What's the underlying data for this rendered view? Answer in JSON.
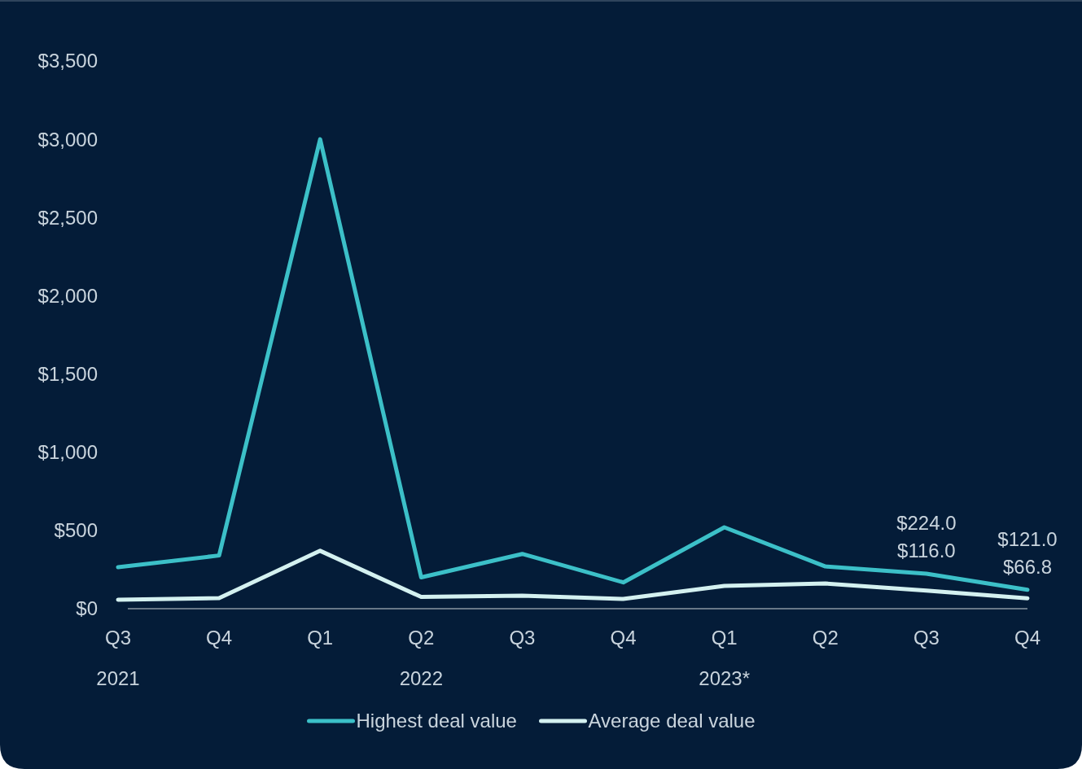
{
  "chart_data": {
    "type": "line",
    "categories": [
      "Q3",
      "Q4",
      "Q1",
      "Q2",
      "Q3",
      "Q4",
      "Q1",
      "Q2",
      "Q3",
      "Q4"
    ],
    "series": [
      {
        "name": "Highest deal value",
        "color": "#3cc0c8",
        "values": [
          265,
          340,
          3000,
          200,
          350,
          168,
          520,
          270,
          224,
          121
        ],
        "value_labels": [
          null,
          null,
          null,
          null,
          null,
          null,
          null,
          null,
          "$224.0",
          "$121.0"
        ]
      },
      {
        "name": "Average deal value",
        "color": "#d4f1f0",
        "values": [
          57,
          68,
          370,
          75,
          83,
          62,
          146,
          161,
          116,
          66.8
        ],
        "value_labels": [
          null,
          null,
          null,
          null,
          null,
          null,
          null,
          null,
          "$116.0",
          "$66.8"
        ]
      }
    ],
    "ylim": [
      0,
      3500
    ],
    "yticks": [
      {
        "value": 0,
        "label": "$0"
      },
      {
        "value": 500,
        "label": "$500"
      },
      {
        "value": 1000,
        "label": "$1,000"
      },
      {
        "value": 1500,
        "label": "$1,500"
      },
      {
        "value": 2000,
        "label": "$2,000"
      },
      {
        "value": 2500,
        "label": "$2,500"
      },
      {
        "value": 3000,
        "label": "$3,000"
      },
      {
        "value": 3500,
        "label": "$3,500"
      }
    ],
    "annotations": [
      "2021",
      "2022",
      "2023*"
    ],
    "grid": false,
    "legend": "bottom",
    "marker": "none",
    "line_style": "solid"
  }
}
